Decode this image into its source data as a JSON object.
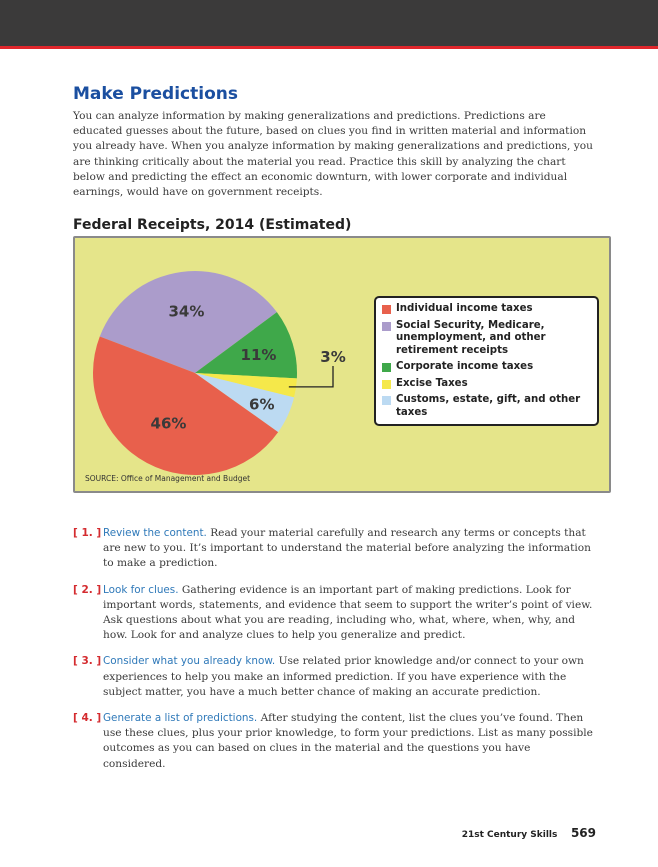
{
  "page": {
    "title": "Make Predictions",
    "intro": "You can analyze information by making generalizations and predictions. Predictions are educated guesses about the future, based on clues you find in written material and information you already have. When you analyze information by making generalizations and predictions, you are thinking critically about the material you read. Practice this skill by analyzing the chart below and predicting the effect an economic downturn, with lower corporate and individual earnings, would have on government receipts."
  },
  "chart_data": {
    "type": "pie",
    "title": "Federal Receipts, 2014 (Estimated)",
    "source": "SOURCE: Office of Management and Budget",
    "slices": [
      {
        "label": "Individual income taxes",
        "value": 46,
        "display": "46%",
        "color": "#e8604c"
      },
      {
        "label": "Social Security, Medicare, unemployment, and other retirement receipts",
        "value": 34,
        "display": "34%",
        "color": "#ab9ccb"
      },
      {
        "label": "Corporate income taxes",
        "value": 11,
        "display": "11%",
        "color": "#3fa84a"
      },
      {
        "label": "Excise Taxes",
        "value": 3,
        "display": "3%",
        "color": "#f5e84a"
      },
      {
        "label": "Customs, estate, gift, and other taxes",
        "value": 6,
        "display": "6%",
        "color": "#bcdaf2"
      }
    ]
  },
  "steps": [
    {
      "num": "[ 1. ]",
      "head": "Review the content.",
      "text": " Read your material carefully and research any terms or concepts that are new to you. It’s important to understand the material before analyzing the information to make a prediction."
    },
    {
      "num": "[ 2. ]",
      "head": "Look for clues.",
      "text": " Gathering evidence is an important part of making predictions. Look for important words, statements, and evidence that seem to support the writer’s point of view. Ask questions about what you are reading, including who, what, where, when, why, and how. Look for and analyze clues to help you generalize and predict."
    },
    {
      "num": "[ 3. ]",
      "head": "Consider what you already know.",
      "text": " Use related prior knowledge and/or connect to your own experiences to help you make an informed prediction. If you have experience with the subject matter, you have a much better chance of making an accurate prediction."
    },
    {
      "num": "[ 4. ]",
      "head": "Generate a list of predictions.",
      "text": " After studying the content, list the clues you’ve found. Then use these clues, plus your prior knowledge, to form your predictions. List as many possible outcomes as you can based on clues in the material and the questions you have considered."
    }
  ],
  "footer": {
    "section": "21st Century Skills",
    "page_number": "569"
  }
}
